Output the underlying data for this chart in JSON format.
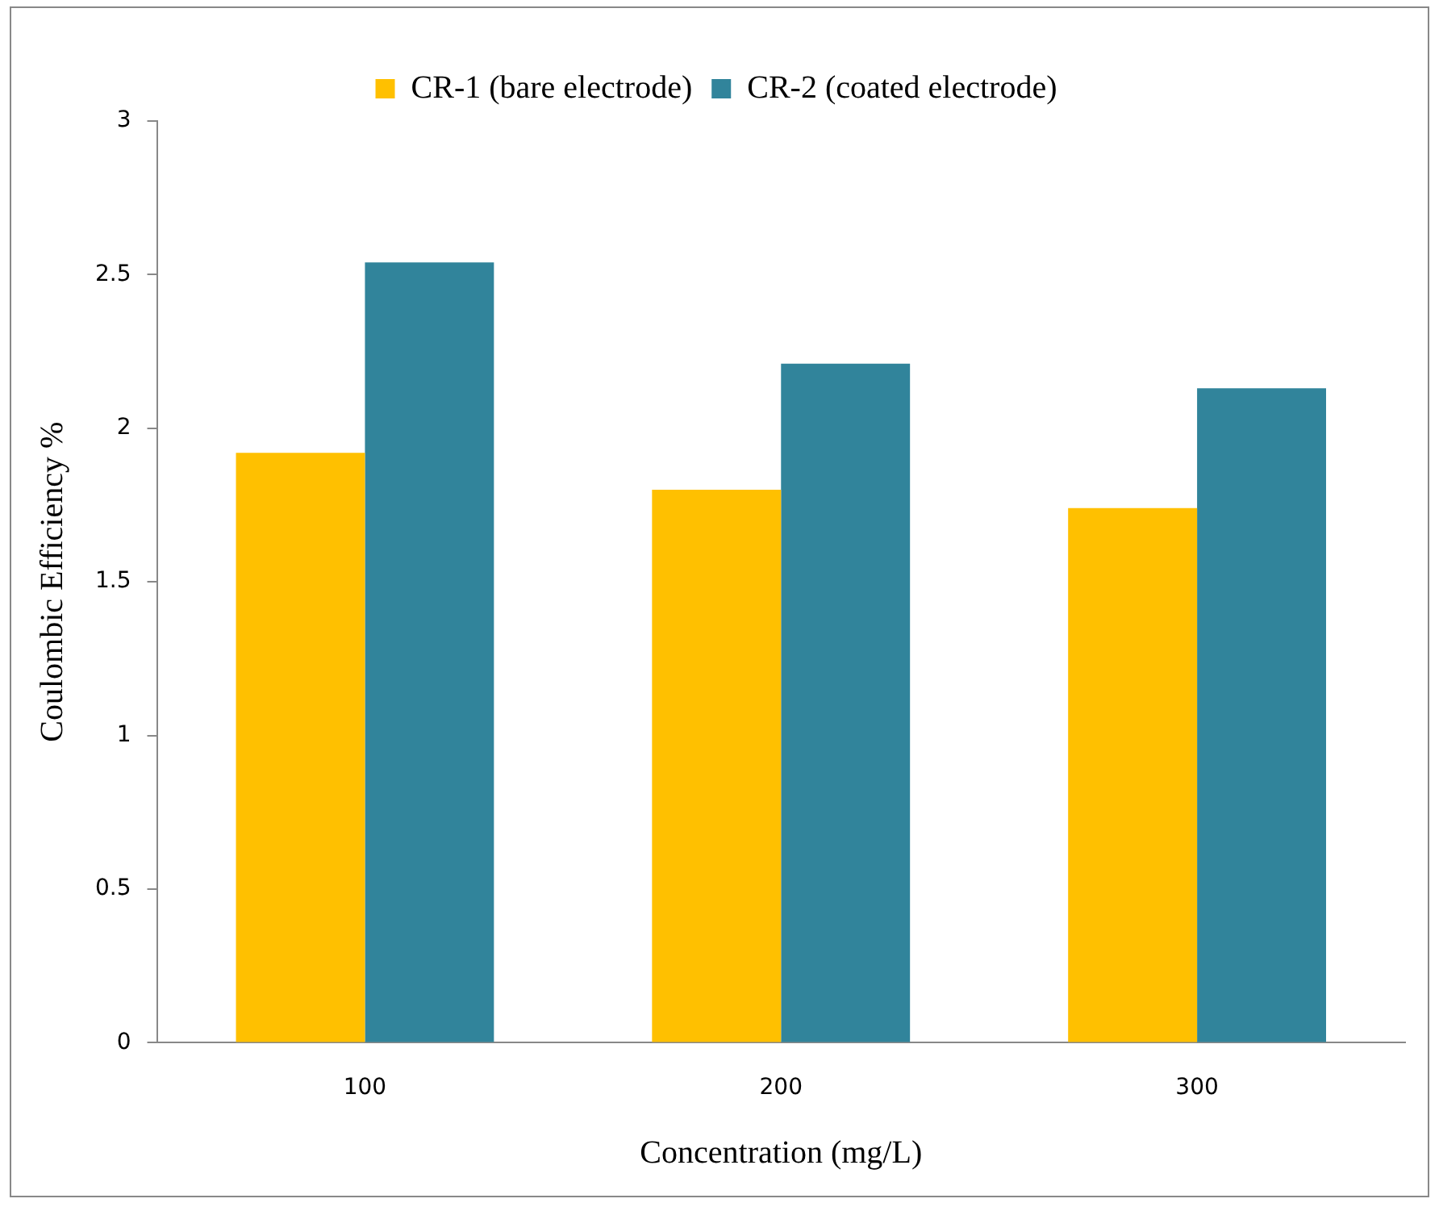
{
  "chart_data": {
    "type": "bar",
    "xlabel": "Concentration (mg/L)",
    "ylabel": "Coulombic Efficiency %",
    "categories": [
      "100",
      "200",
      "300"
    ],
    "series": [
      {
        "name": "CR-1 (bare electrode)",
        "color": "#ffc000",
        "values": [
          1.92,
          1.8,
          1.74
        ]
      },
      {
        "name": "CR-2 (coated electrode)",
        "color": "#31849b",
        "values": [
          2.54,
          2.21,
          2.13
        ]
      }
    ],
    "ylim": [
      0,
      3
    ],
    "yticks": [
      0,
      0.5,
      1,
      1.5,
      2,
      2.5,
      3
    ],
    "grid": false,
    "legend": "top"
  }
}
